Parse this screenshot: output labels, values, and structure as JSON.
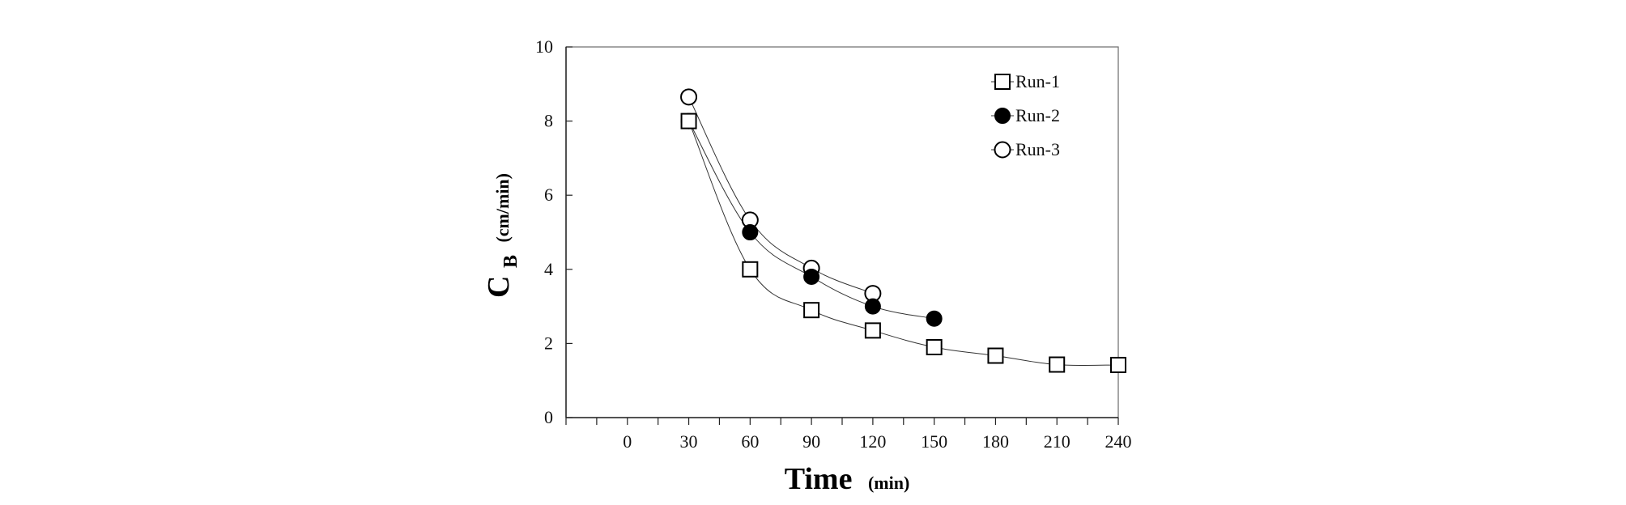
{
  "chart_data": {
    "type": "scatter",
    "xlabel": "Time",
    "xlabel_unit": "(min)",
    "ylabel": "C",
    "ylabel_subscript": "B",
    "ylabel_unit": "(cm/min)",
    "xlim": [
      -30,
      240
    ],
    "ylim": [
      0,
      10
    ],
    "x_ticks": [
      0,
      30,
      60,
      90,
      120,
      150,
      180,
      210,
      240
    ],
    "y_ticks": [
      0,
      2,
      4,
      6,
      8,
      10
    ],
    "grid": false,
    "legend_position": "top-right",
    "series": [
      {
        "name": "Run-1",
        "marker": "open-square",
        "color": "#000000",
        "x": [
          30,
          60,
          90,
          120,
          150,
          180,
          210,
          240
        ],
        "y": [
          8.0,
          4.0,
          2.9,
          2.35,
          1.9,
          1.67,
          1.43,
          1.42
        ]
      },
      {
        "name": "Run-2",
        "marker": "filled-circle",
        "color": "#000000",
        "x": [
          30,
          60,
          90,
          120,
          150
        ],
        "y": [
          8.0,
          5.0,
          3.8,
          3.0,
          2.67
        ]
      },
      {
        "name": "Run-3",
        "marker": "open-circle",
        "color": "#000000",
        "x": [
          30,
          60,
          90,
          120
        ],
        "y": [
          8.65,
          5.33,
          4.03,
          3.35
        ]
      }
    ]
  }
}
